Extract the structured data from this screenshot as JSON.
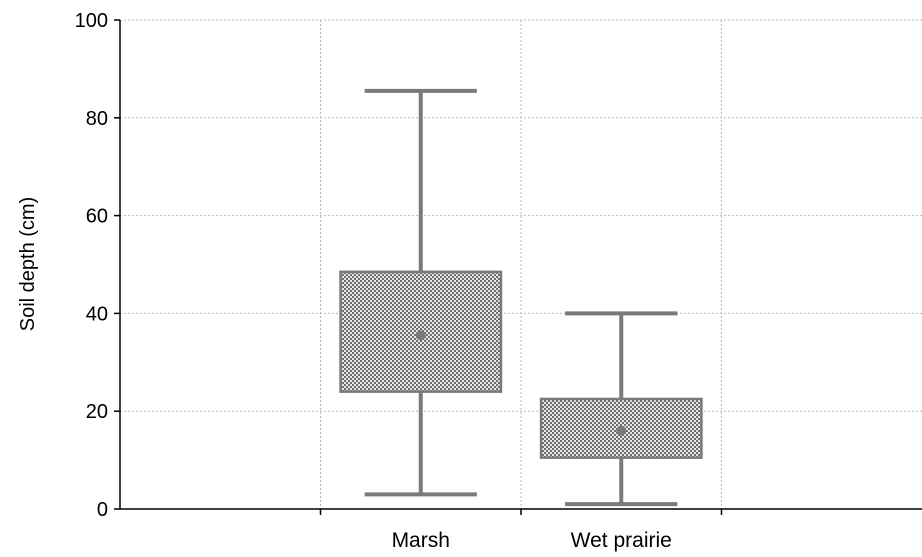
{
  "chart_data": {
    "type": "box",
    "ylabel": "Soil depth (cm)",
    "ylim": [
      0,
      100
    ],
    "yticks": [
      0,
      20,
      40,
      60,
      80,
      100
    ],
    "grid": true,
    "categories": [
      "Marsh",
      "Wet prairie"
    ],
    "slots": 4,
    "category_slots": [
      1,
      2
    ],
    "boxes": [
      {
        "category": "Marsh",
        "min": 3,
        "q1": 24,
        "median": 35.5,
        "q3": 48.5,
        "max": 85.5
      },
      {
        "category": "Wet prairie",
        "min": 1,
        "q1": 10.5,
        "median": 16,
        "q3": 22.5,
        "max": 40
      }
    ],
    "colors": {
      "whisker": "#7a7a7a",
      "box_pattern_dark": "#6e6e6e",
      "box_pattern_light": "#e6e6e6",
      "grid": "#b8b8b8"
    }
  }
}
